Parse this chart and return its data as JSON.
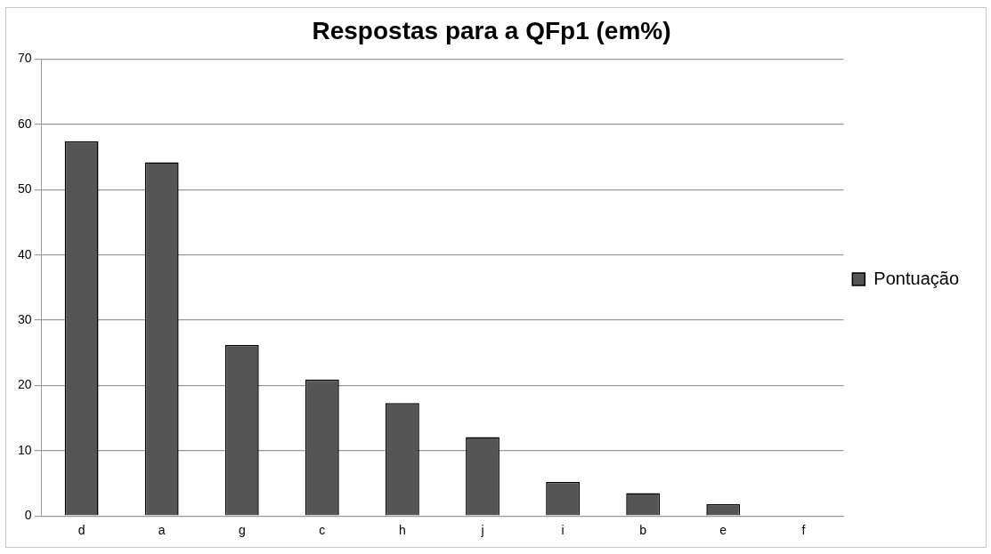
{
  "chart_data": {
    "type": "bar",
    "title": "Respostas para a QFp1 (em%)",
    "categories": [
      "d",
      "a",
      "g",
      "c",
      "h",
      "j",
      "i",
      "b",
      "e",
      "f"
    ],
    "series": [
      {
        "name": "Pontuação",
        "color": "#555555",
        "values": [
          57.4,
          54.2,
          26.2,
          20.9,
          17.3,
          12.1,
          5.2,
          3.5,
          1.8,
          0
        ]
      }
    ],
    "ylim": [
      0,
      70
    ],
    "yticks": [
      0,
      10,
      20,
      30,
      40,
      50,
      60,
      70
    ],
    "grid": "y",
    "legend": "right"
  }
}
